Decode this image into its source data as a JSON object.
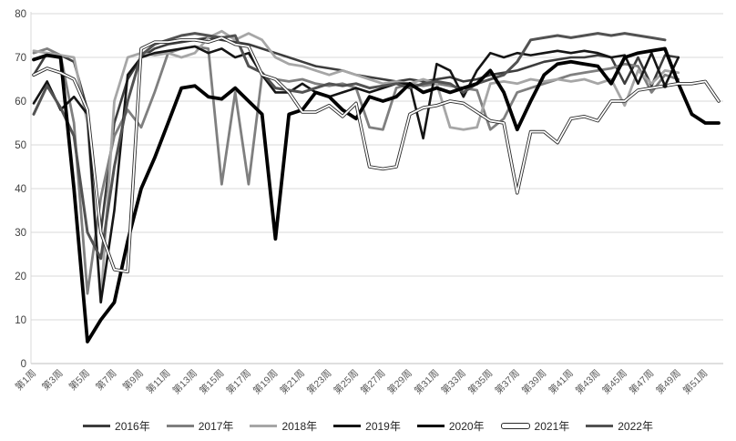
{
  "chart_data": {
    "type": "line",
    "title": "",
    "xlabel": "",
    "ylabel": "",
    "ylim": [
      0,
      80
    ],
    "y_ticks": [
      0,
      10,
      20,
      30,
      40,
      50,
      60,
      70,
      80
    ],
    "x_tick_labels": [
      "第1周",
      "第3周",
      "第5周",
      "第7周",
      "第9周",
      "第11周",
      "第13周",
      "第15周",
      "第17周",
      "第19周",
      "第21周",
      "第23周",
      "第25周",
      "第27周",
      "第29周",
      "第31周",
      "第33周",
      "第35周",
      "第37周",
      "第39周",
      "第41周",
      "第43周",
      "第45周",
      "第47周",
      "第49周",
      "第51周"
    ],
    "weeks_total": 52,
    "grid": "horizontal",
    "legend_position": "bottom",
    "background": "#ffffff",
    "grid_color": "#d9d9d9",
    "axis_color": "#bfbfbf",
    "tick_text_color": "#404040",
    "x_tick_text_color": "#595959",
    "series": [
      {
        "name": "2016年",
        "color": "#3d3d3d",
        "width": 2.6,
        "style": "solid",
        "start_week": 1,
        "values": [
          66,
          71,
          70.5,
          69,
          58,
          30,
          55,
          65,
          70,
          72,
          73,
          73.5,
          74,
          74.5,
          74,
          73.5,
          73,
          72,
          71,
          70,
          69,
          68,
          67.5,
          67,
          66,
          65.5,
          65,
          64.5,
          65,
          64.5,
          65,
          65.5,
          64.5,
          65,
          66,
          66.5,
          67,
          68,
          69,
          69.5,
          70,
          70,
          70.5,
          70,
          64,
          70,
          63.5,
          70.5,
          70
        ]
      },
      {
        "name": "2017年",
        "color": "#7f7f7f",
        "width": 2.8,
        "style": "solid",
        "start_week": 1,
        "values": [
          71,
          72,
          70.5,
          55,
          16,
          38,
          52,
          58,
          54,
          62,
          71,
          72,
          72.5,
          72,
          41,
          62,
          41,
          66,
          65,
          64.5,
          65,
          64,
          63.5,
          64,
          63,
          54,
          53.5,
          63,
          64,
          63.5,
          64,
          63.5,
          63,
          62.5,
          53.5,
          56,
          62,
          63,
          64,
          65,
          66,
          66.5,
          67,
          67.5,
          68.5,
          68,
          62,
          66,
          65
        ]
      },
      {
        "name": "2018年",
        "color": "#a6a6a6",
        "width": 2.8,
        "style": "solid",
        "start_week": 1,
        "values": [
          71.5,
          71,
          70.5,
          70,
          55,
          14,
          60,
          70,
          71,
          70.5,
          71,
          70,
          71,
          74.5,
          76,
          74,
          75.5,
          74,
          70,
          68.5,
          68,
          67,
          66,
          67,
          66,
          65,
          64,
          64.5,
          64,
          65,
          64,
          54,
          53.5,
          54,
          64,
          64.5,
          64,
          65,
          64.5,
          65,
          64.5,
          65,
          64,
          65,
          59,
          67,
          64,
          67,
          66.5
        ]
      },
      {
        "name": "2019年",
        "color": "#151515",
        "width": 2.6,
        "style": "solid",
        "start_week": 1,
        "values": [
          59.5,
          64.5,
          58,
          61,
          57,
          14,
          35,
          66,
          70,
          71,
          71.5,
          72,
          72.5,
          71,
          72,
          70,
          71,
          66,
          62,
          62,
          64,
          62,
          61,
          62,
          63,
          62,
          63,
          64,
          64,
          51.5,
          68.5,
          67,
          61,
          67,
          71,
          70,
          71,
          70.5,
          71,
          71.5,
          71,
          71.5,
          71,
          70,
          70.5,
          64,
          71,
          63.5,
          70
        ]
      },
      {
        "name": "2020年",
        "color": "#000000",
        "width": 3.8,
        "style": "solid",
        "start_week": 1,
        "values": [
          69.5,
          70.5,
          70,
          40,
          5,
          10,
          14,
          28,
          40,
          47,
          55,
          63,
          63.5,
          61,
          60.5,
          63,
          60,
          57,
          28.5,
          57,
          58,
          62,
          61,
          58,
          56,
          61,
          60,
          61,
          64,
          62,
          63,
          62,
          63,
          64,
          67,
          62,
          53.5,
          60,
          66,
          68.5,
          69,
          68.5,
          68,
          64,
          70,
          71,
          71.5,
          72,
          64,
          57,
          55,
          55
        ]
      },
      {
        "name": "2021年",
        "color": "#ffffff",
        "outline_color": "#2b2b2b",
        "width": 3.6,
        "style": "outlined-white",
        "start_week": 1,
        "values": [
          66,
          67.5,
          66.5,
          65,
          58,
          30,
          21.5,
          21,
          72,
          73.5,
          73.5,
          74,
          74,
          73.5,
          74.5,
          73,
          72.5,
          66,
          65,
          62,
          57.5,
          57.5,
          59,
          56.5,
          59.5,
          45,
          44.5,
          45,
          57,
          58.5,
          59,
          60,
          59.5,
          57.5,
          55.5,
          55,
          39,
          53,
          53,
          50.5,
          56,
          56.5,
          55.5,
          60,
          60,
          62.5,
          63,
          63.5,
          64,
          64,
          64.5,
          60
        ]
      },
      {
        "name": "2022年",
        "color": "#525252",
        "width": 3.0,
        "style": "solid",
        "start_week": 1,
        "values": [
          57,
          63.5,
          58.5,
          52,
          30,
          24,
          45,
          60,
          70.5,
          73,
          74,
          75,
          75.5,
          75,
          74.5,
          75,
          68,
          66.5,
          63,
          62.5,
          62,
          63,
          64,
          63.5,
          64,
          63,
          63.5,
          64,
          63,
          64,
          64.5,
          64,
          62,
          64,
          65,
          66,
          69,
          74,
          74.5,
          75,
          74.5,
          75,
          75.5,
          75,
          75.5,
          75,
          74.5,
          74
        ]
      }
    ],
    "annotations": [
      {
        "type": "point-marker",
        "series": "2021年",
        "week": 48,
        "value": 63.5,
        "color": "#111111"
      }
    ]
  },
  "legend": {
    "items": [
      "2016年",
      "2017年",
      "2018年",
      "2019年",
      "2020年",
      "2021年",
      "2022年"
    ]
  }
}
